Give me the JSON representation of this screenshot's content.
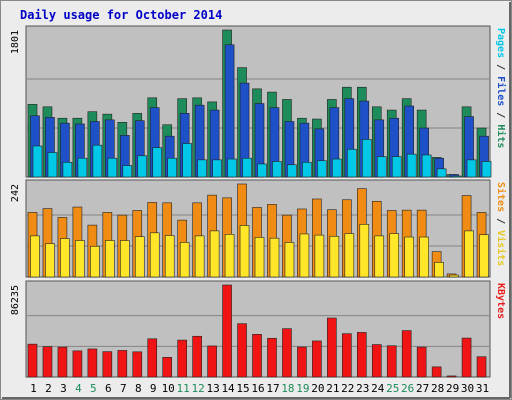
{
  "chart_data": {
    "type": "bar",
    "title": "Daily usage for October 2014",
    "categories": [
      "1",
      "2",
      "3",
      "4",
      "5",
      "6",
      "7",
      "8",
      "9",
      "10",
      "11",
      "12",
      "13",
      "14",
      "15",
      "16",
      "17",
      "18",
      "19",
      "20",
      "21",
      "22",
      "23",
      "24",
      "25",
      "26",
      "27",
      "28",
      "29",
      "30",
      "31"
    ],
    "weekend_days": [
      "4",
      "5",
      "11",
      "12",
      "18",
      "19",
      "25",
      "26"
    ],
    "panels": [
      {
        "name": "hits-files-pages",
        "max_label": "1801",
        "ymax": 1801,
        "right_label": [
          {
            "text": "Pages",
            "color": "#00c8e6"
          },
          {
            "text": " / ",
            "color": "#333333"
          },
          {
            "text": "Files",
            "color": "#1e50c8"
          },
          {
            "text": " / ",
            "color": "#333333"
          },
          {
            "text": "Hits",
            "color": "#1e8c5a"
          }
        ],
        "series": [
          {
            "name": "Hits",
            "color": "#1e8c5a",
            "values": [
              890,
              860,
              720,
              720,
              800,
              770,
              670,
              780,
              970,
              640,
              960,
              970,
              920,
              1801,
              1340,
              1080,
              1040,
              950,
              720,
              710,
              950,
              1100,
              1100,
              860,
              820,
              960,
              820,
              240,
              30,
              860,
              600
            ]
          },
          {
            "name": "Files",
            "color": "#1e50c8",
            "values": [
              750,
              730,
              660,
              650,
              680,
              700,
              510,
              690,
              850,
              500,
              780,
              880,
              820,
              1620,
              1150,
              900,
              850,
              680,
              660,
              590,
              850,
              960,
              930,
              700,
              720,
              870,
              600,
              230,
              30,
              740,
              500
            ]
          },
          {
            "name": "Pages",
            "color": "#00c8e6",
            "values": [
              380,
              300,
              180,
              230,
              390,
              230,
              140,
              260,
              360,
              230,
              410,
              210,
              210,
              220,
              230,
              160,
              190,
              150,
              180,
              200,
              220,
              340,
              460,
              250,
              250,
              280,
              270,
              100,
              10,
              210,
              190
            ]
          }
        ]
      },
      {
        "name": "visits-sites",
        "max_label": "242",
        "ymax": 242,
        "right_label": [
          {
            "text": "Sites",
            "color": "#f08c14"
          },
          {
            "text": " / ",
            "color": "#333333"
          },
          {
            "text": "Visits",
            "color": "#e6c820"
          }
        ],
        "series": [
          {
            "name": "Visits",
            "color": "#f08c14",
            "values": [
              168,
              178,
              155,
              182,
              135,
              168,
              161,
              173,
              194,
              193,
              148,
              193,
              213,
              206,
              242,
              181,
              189,
              161,
              177,
              203,
              175,
              201,
              230,
              197,
              173,
              174,
              174,
              66,
              8,
              212,
              168
            ]
          },
          {
            "name": "Sites",
            "color": "#ffe628",
            "values": [
              107,
              87,
              100,
              95,
              80,
              95,
              95,
              105,
              115,
              108,
              90,
              107,
              120,
              111,
              134,
              103,
              101,
              90,
              112,
              109,
              106,
              113,
              137,
              107,
              113,
              104,
              104,
              38,
              5,
              120,
              110
            ]
          }
        ]
      },
      {
        "name": "kbytes",
        "max_label": "86235",
        "ymax": 86235,
        "right_label": [
          {
            "text": "KBytes",
            "color": "#e61e1e"
          }
        ],
        "series": [
          {
            "name": "KBytes",
            "color": "#f01414",
            "values": [
              30800,
              28400,
              28000,
              24500,
              26300,
              23800,
              24900,
              23600,
              35800,
              18400,
              34600,
              38200,
              29100,
              86235,
              50000,
              40000,
              36300,
              45300,
              28100,
              33800,
              55300,
              40600,
              41800,
              30400,
              29300,
              43500,
              28000,
              9500,
              1000,
              36500,
              19000
            ]
          }
        ]
      }
    ]
  }
}
